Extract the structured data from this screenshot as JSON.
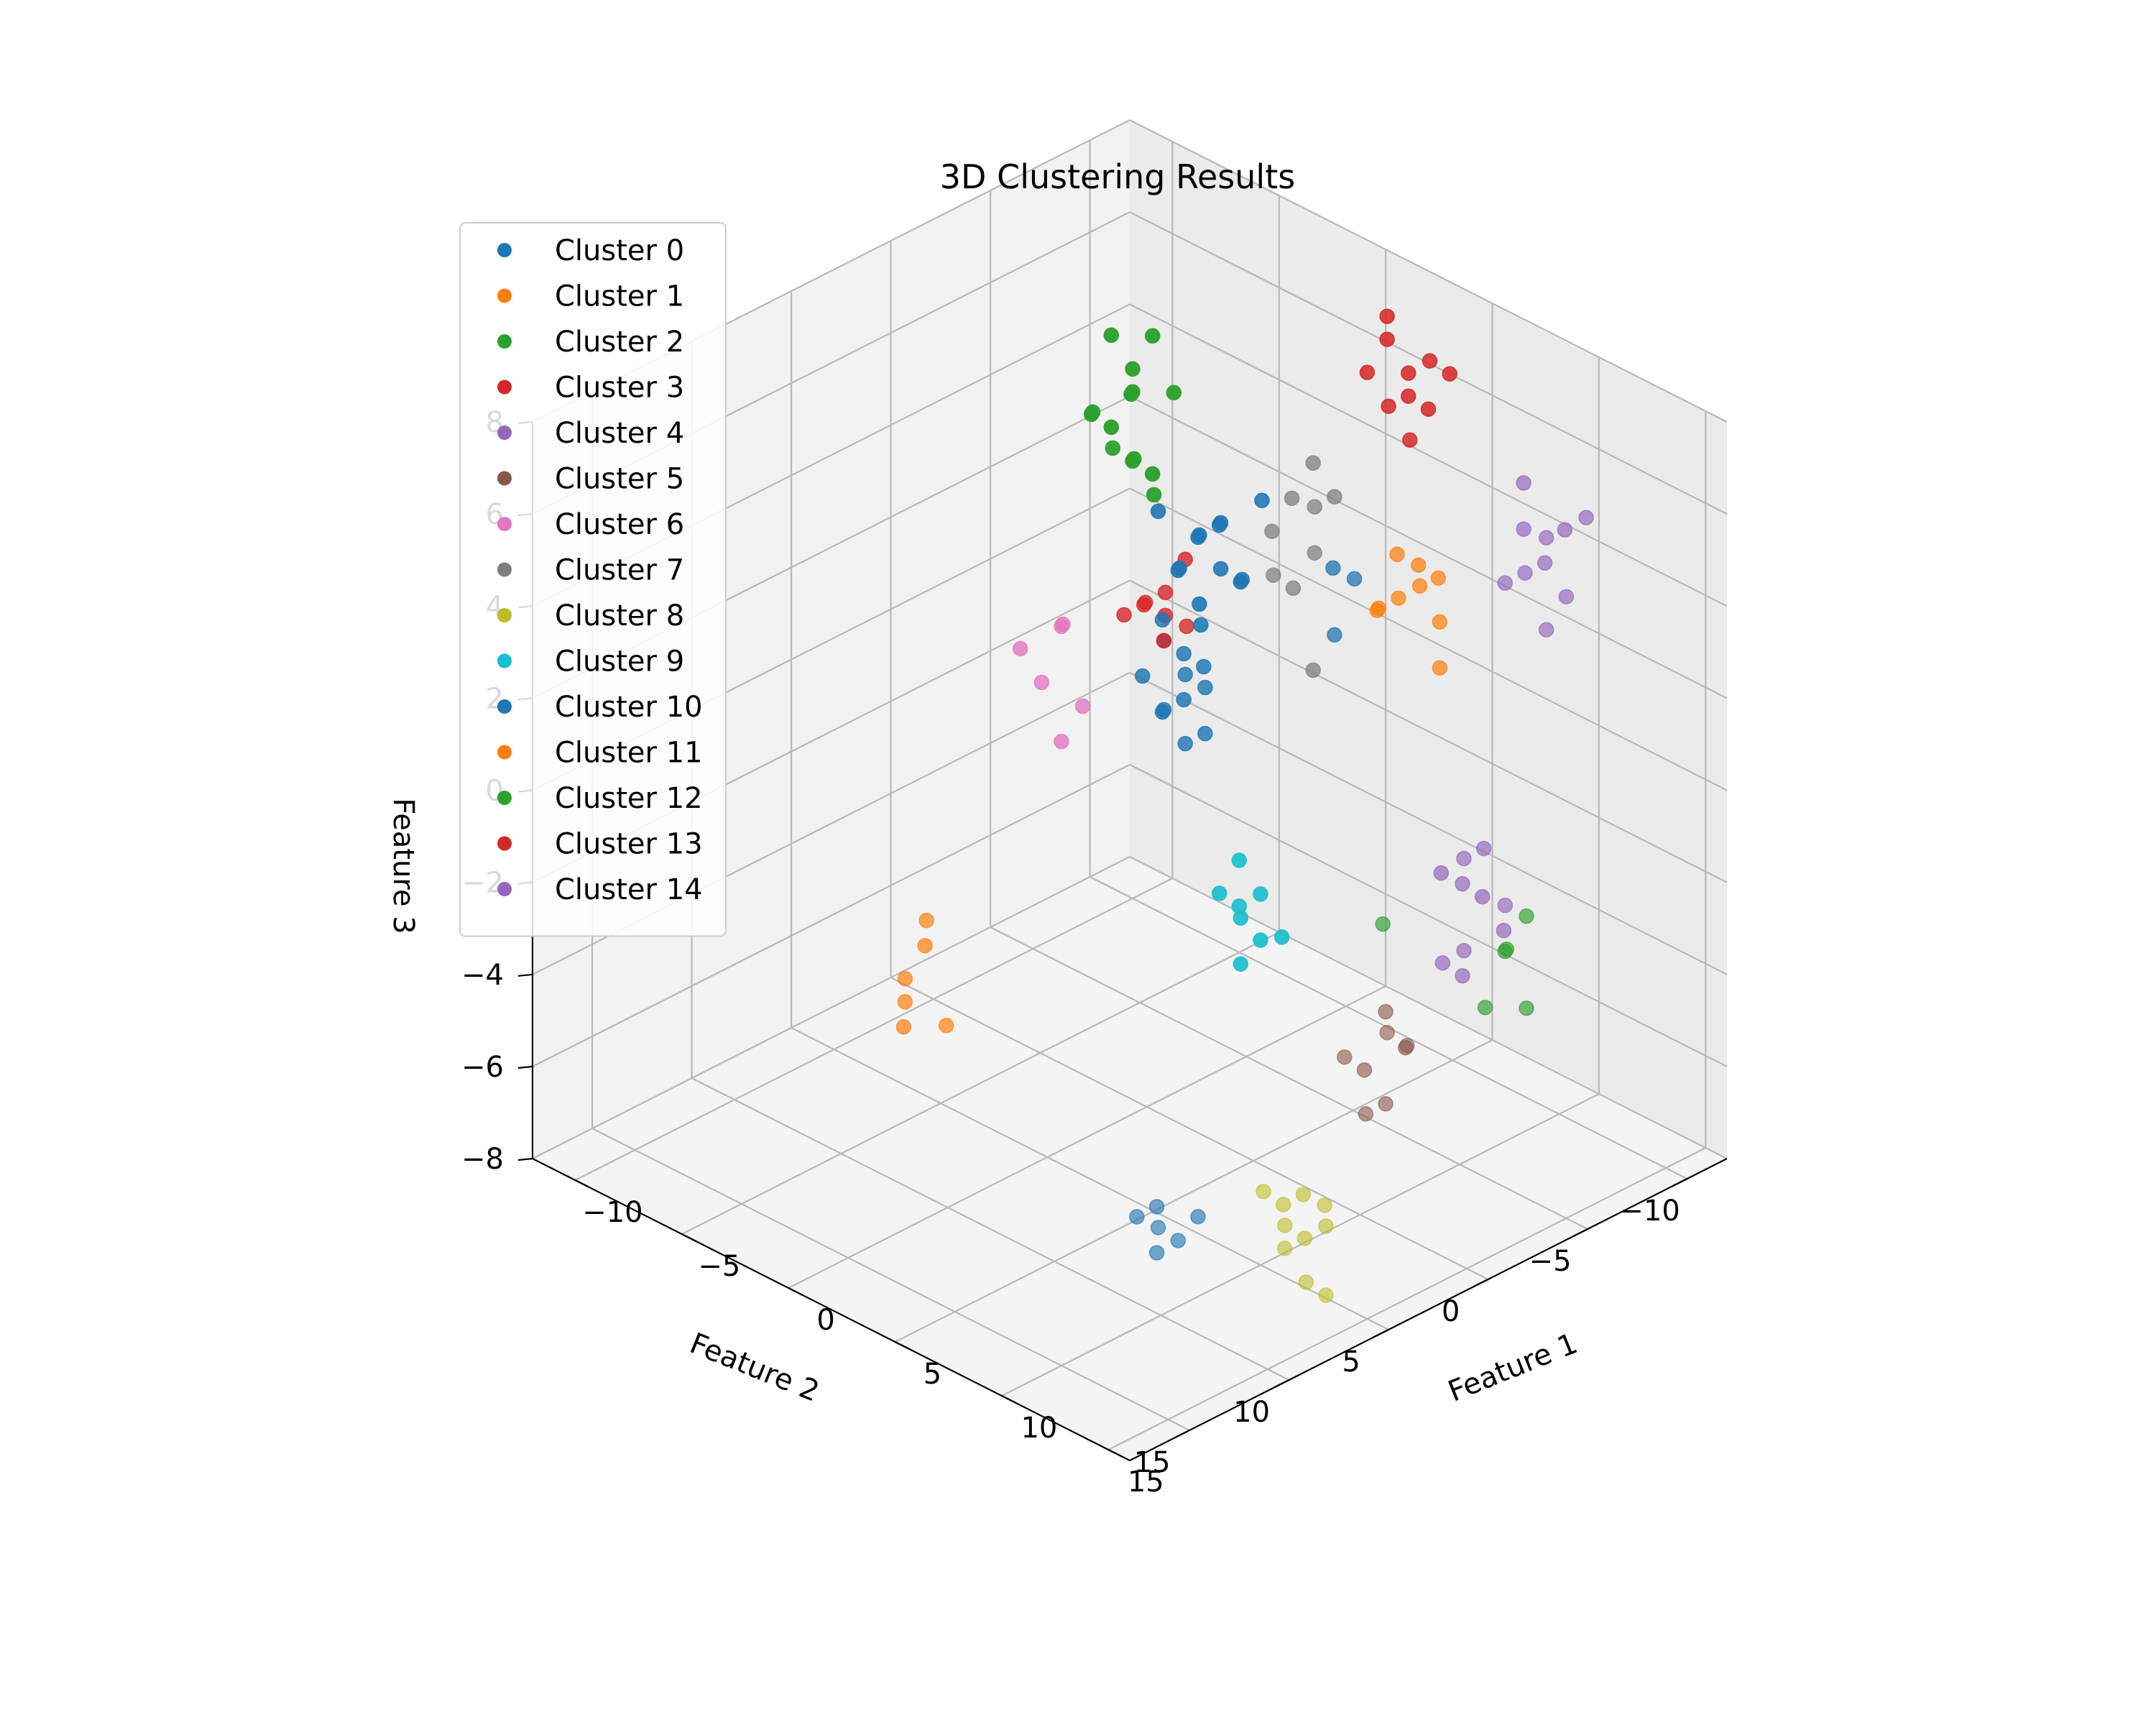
{
  "chart_data": {
    "type": "scatter",
    "title": "3D Clustering Results",
    "xlabel": "Feature 1",
    "ylabel": "Feature 2",
    "zlabel": "Feature 3",
    "xlim": [
      -12,
      18
    ],
    "ylim": [
      -12,
      16
    ],
    "zlim": [
      -8,
      8
    ],
    "xticks": [
      -10,
      -5,
      0,
      5,
      10,
      15
    ],
    "yticks": [
      -10,
      -5,
      0,
      5,
      10,
      15
    ],
    "zticks": [
      -8,
      -6,
      -4,
      -2,
      0,
      2,
      4,
      6,
      8
    ],
    "grid": true,
    "legend_position": "top-left",
    "series": [
      {
        "name": "Cluster 0",
        "color": "#1f77b4",
        "points": [
          [
            -8,
            -4,
            2
          ],
          [
            -9,
            -5,
            1.5
          ],
          [
            -8,
            -6,
            0.5
          ],
          [
            -7,
            -5,
            1
          ],
          [
            -9,
            -3,
            2.5
          ],
          [
            -8,
            -5,
            1.5
          ],
          [
            -7,
            -4,
            0
          ],
          [
            -8,
            -3,
            1
          ],
          [
            -9,
            -4,
            0.5
          ],
          [
            -7,
            -6,
            2
          ],
          [
            -8,
            -5,
            0
          ],
          [
            -8,
            -4,
            1
          ],
          [
            -9,
            -6,
            1
          ]
        ]
      },
      {
        "name": "Cluster 1",
        "color": "#ff7f0e",
        "points": [
          [
            9,
            -2,
            -3
          ],
          [
            10,
            -2,
            -4
          ],
          [
            10,
            -1,
            -2
          ],
          [
            9,
            -3,
            -5
          ],
          [
            10,
            -2,
            -3.5
          ],
          [
            9,
            -1,
            -4.5
          ]
        ]
      },
      {
        "name": "Cluster 2",
        "color": "#2ca02c",
        "points": [
          [
            -10,
            -10,
            3
          ],
          [
            -10,
            -11,
            2
          ],
          [
            -11,
            -10,
            4
          ],
          [
            -10,
            -9,
            1
          ],
          [
            -11,
            -11,
            2.5
          ],
          [
            -10,
            -10,
            1.5
          ],
          [
            -9,
            -10,
            2
          ],
          [
            -10,
            -11,
            4
          ],
          [
            -11,
            -9,
            3
          ],
          [
            -10,
            -10,
            3.5
          ],
          [
            -9,
            -9,
            2
          ],
          [
            -11,
            -10,
            1
          ],
          [
            -9,
            -11,
            2.5
          ],
          [
            -8,
            -10,
            3
          ]
        ]
      },
      {
        "name": "Cluster 3",
        "color": "#d62728",
        "points": [
          [
            -11,
            2,
            6
          ],
          [
            -10,
            2,
            5.5
          ],
          [
            -11,
            3,
            6.5
          ],
          [
            -10,
            1,
            6
          ],
          [
            -12,
            2,
            5
          ],
          [
            -11,
            1,
            7
          ],
          [
            -10,
            3,
            5
          ],
          [
            -11,
            2,
            5.5
          ],
          [
            -12,
            3,
            6
          ],
          [
            -11,
            1,
            6.5
          ]
        ]
      },
      {
        "name": "Cluster 4",
        "color": "#9467bd",
        "points": [
          [
            -3,
            12,
            -1
          ],
          [
            -2,
            13,
            -2
          ],
          [
            -3,
            13,
            0
          ],
          [
            -4,
            12,
            -1.5
          ],
          [
            -2,
            12,
            -2.5
          ],
          [
            -3,
            14,
            -1
          ],
          [
            -4,
            13,
            -2
          ],
          [
            -2,
            13,
            0
          ],
          [
            -3,
            11,
            -1
          ],
          [
            -3,
            12,
            -3
          ]
        ]
      },
      {
        "name": "Cluster 5",
        "color": "#8c564b",
        "points": [
          [
            3,
            14,
            -2
          ],
          [
            4,
            13,
            -3
          ],
          [
            3,
            15,
            -2.5
          ],
          [
            4,
            14,
            -4
          ],
          [
            2,
            14,
            -3
          ],
          [
            3,
            13,
            -3.5
          ],
          [
            4,
            15,
            -2
          ],
          [
            3,
            14,
            -4
          ]
        ]
      },
      {
        "name": "Cluster 6",
        "color": "#e377c2",
        "points": [
          [
            0,
            -4,
            1.5
          ],
          [
            1,
            -4,
            0.5
          ],
          [
            0,
            -3,
            0
          ],
          [
            1,
            -5,
            1
          ],
          [
            0,
            -4,
            -1
          ],
          [
            1,
            -3,
            2
          ]
        ]
      },
      {
        "name": "Cluster 7",
        "color": "#7f7f7f",
        "points": [
          [
            -3,
            5,
            6.5
          ],
          [
            -2,
            6,
            5
          ],
          [
            -3,
            6,
            6
          ],
          [
            -2,
            5,
            4
          ],
          [
            -3,
            4,
            5.5
          ],
          [
            -2,
            4,
            5
          ],
          [
            -1,
            5,
            4.5
          ],
          [
            -3,
            5,
            2
          ],
          [
            -2,
            6,
            6
          ]
        ]
      },
      {
        "name": "Cluster 8",
        "color": "#bcbd22",
        "points": [
          [
            6,
            14,
            -6
          ],
          [
            7,
            13,
            -6.5
          ],
          [
            6,
            12,
            -6
          ],
          [
            7,
            14,
            -7
          ],
          [
            5,
            13,
            -6
          ],
          [
            6,
            13,
            -6.5
          ],
          [
            7,
            12,
            -5.5
          ],
          [
            6,
            14,
            -7.5
          ],
          [
            5,
            12,
            -6
          ],
          [
            7,
            13,
            -6
          ]
        ]
      },
      {
        "name": "Cluster 9",
        "color": "#17becf",
        "points": [
          [
            -10,
            -4,
            -6.5
          ],
          [
            -10,
            -5,
            -7
          ],
          [
            -9,
            -4,
            -6.8
          ],
          [
            -10,
            -3,
            -7.2
          ],
          [
            -9,
            -5,
            -6.5
          ],
          [
            -10,
            -4,
            -7.5
          ],
          [
            -9,
            -4,
            -7.8
          ],
          [
            -10,
            -5,
            -6
          ]
        ]
      },
      {
        "name": "Cluster 10",
        "color": "#1f77b4",
        "points": [
          [
            -4,
            -1,
            0
          ],
          [
            -3,
            -2,
            -0.5
          ],
          [
            -4,
            -3,
            1
          ],
          [
            -3,
            -1,
            -1
          ],
          [
            -4,
            -2,
            0.5
          ],
          [
            -3,
            -3,
            0
          ],
          [
            -4,
            -1,
            -1
          ],
          [
            -3,
            -2,
            1
          ],
          [
            -4,
            -2,
            -0.5
          ],
          [
            -3,
            -1,
            0.5
          ],
          [
            -5,
            -2,
            0
          ],
          [
            -4,
            -3,
            -1
          ],
          [
            7,
            7,
            -7
          ],
          [
            7,
            8,
            -7.5
          ],
          [
            8,
            7,
            -7
          ],
          [
            6,
            8,
            -7.2
          ],
          [
            7,
            7,
            -8
          ],
          [
            8,
            8,
            -7
          ],
          [
            -4,
            6,
            4
          ],
          [
            -3,
            6,
            3
          ],
          [
            -4,
            5,
            4
          ]
        ]
      },
      {
        "name": "Cluster 11",
        "color": "#ff7f0e",
        "points": [
          [
            -4,
            9,
            5
          ],
          [
            -3,
            9,
            4.5
          ],
          [
            -4,
            10,
            4
          ],
          [
            -3,
            10,
            5
          ],
          [
            -5,
            9,
            4.5
          ],
          [
            -4,
            8,
            5
          ],
          [
            -3,
            8,
            4
          ],
          [
            -2,
            9,
            4.5
          ],
          [
            -4,
            10,
            3
          ]
        ]
      },
      {
        "name": "Cluster 12",
        "color": "#2ca02c",
        "points": [
          [
            -3,
            15,
            -1
          ],
          [
            -2,
            15,
            -1.5
          ],
          [
            -3,
            14,
            -2
          ],
          [
            -2,
            14,
            -3
          ],
          [
            -3,
            15,
            -3
          ],
          [
            1,
            12,
            -1
          ]
        ]
      },
      {
        "name": "Cluster 13",
        "color": "#d62728",
        "points": [
          [
            -2,
            -1,
            2.5
          ],
          [
            -2,
            -2,
            2
          ],
          [
            -1,
            -1,
            2.5
          ],
          [
            -2,
            -1,
            2
          ],
          [
            -3,
            -1,
            3
          ],
          [
            -1,
            -2,
            2
          ],
          [
            -2,
            0,
            2
          ],
          [
            -3,
            -2,
            1
          ]
        ]
      },
      {
        "name": "Cluster 14",
        "color": "#9467bd",
        "points": [
          [
            -5,
            14,
            6
          ],
          [
            -4,
            15,
            7
          ],
          [
            -5,
            13,
            7.5
          ],
          [
            -6,
            14,
            6.5
          ],
          [
            -4,
            14,
            6
          ],
          [
            -5,
            15,
            5.5
          ],
          [
            -3,
            14,
            6
          ],
          [
            -5,
            13,
            6.5
          ],
          [
            -6,
            15,
            7
          ],
          [
            -4,
            15,
            5
          ]
        ]
      }
    ]
  }
}
